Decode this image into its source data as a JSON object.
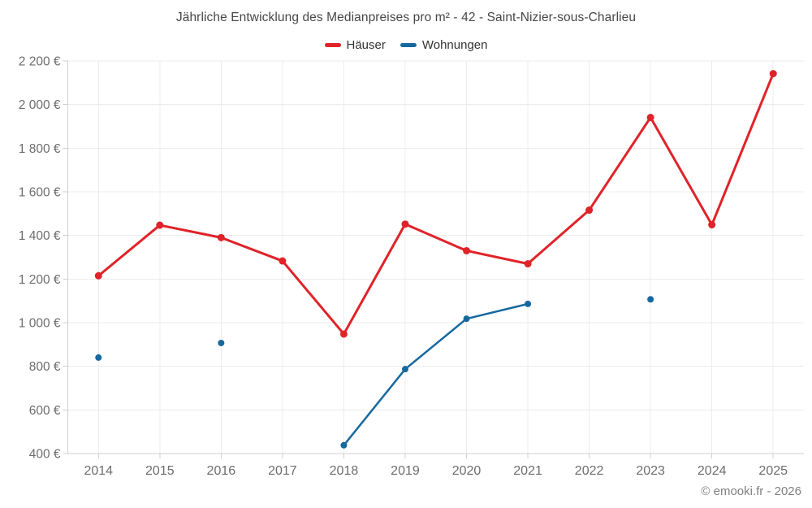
{
  "chart": {
    "title": "Jährliche Entwicklung des Medianpreises pro m² - 42 - Saint-Nizier-sous-Charlieu",
    "credits": "© emooki.fr - 2026"
  },
  "chart_data": {
    "type": "line",
    "title": "Jährliche Entwicklung des Medianpreises pro m² - 42 - Saint-Nizier-sous-Charlieu",
    "xlabel": "",
    "ylabel": "",
    "categories": [
      "2014",
      "2015",
      "2016",
      "2017",
      "2018",
      "2019",
      "2020",
      "2021",
      "2022",
      "2023",
      "2024",
      "2025"
    ],
    "series": [
      {
        "name": "Häuser",
        "color": "#e02329",
        "values": [
          1215,
          1447,
          1390,
          1283,
          948,
          1452,
          1330,
          1270,
          1516,
          1941,
          1449,
          2142
        ]
      },
      {
        "name": "Wohnungen",
        "color": "#16689e",
        "values": [
          840,
          null,
          907,
          null,
          438,
          787,
          1018,
          1086,
          null,
          1107,
          null,
          null
        ]
      }
    ],
    "ylim": [
      400,
      2200
    ],
    "ytick_step": 200,
    "ytick_labels": [
      "400 €",
      "600 €",
      "800 €",
      "1 000 €",
      "1 200 €",
      "1 400 €",
      "1 600 €",
      "1 800 €",
      "2 000 €",
      "2 200 €"
    ],
    "grid": true,
    "legend_position": "top",
    "credits": "© emooki.fr - 2026",
    "colors": {
      "grid": "#ececec",
      "axis": "#d0d0d0",
      "axis_label": "#6d6d6d",
      "title_text": "#474747",
      "credits_text": "#808080"
    }
  }
}
